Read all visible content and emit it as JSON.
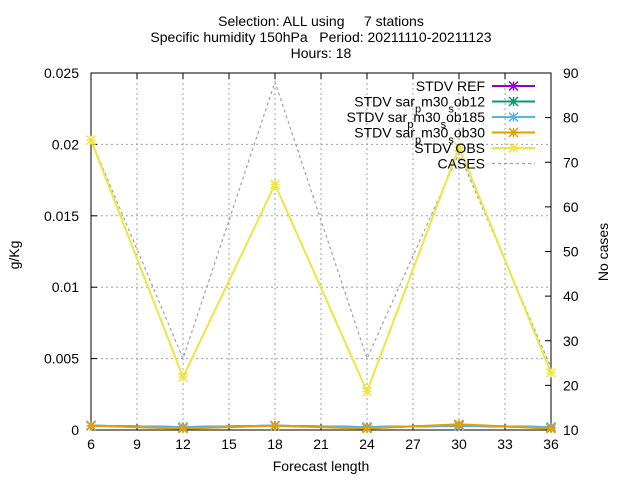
{
  "chart_data": {
    "type": "line",
    "title_lines": [
      "Selection: ALL using     7 stations",
      "Specific humidity 150hPa   Period: 20211110-20211123",
      "Hours: 18"
    ],
    "xlabel": "Forecast length",
    "ylabel": "g/Kg",
    "y2label": "No cases",
    "x": [
      6,
      12,
      18,
      24,
      30,
      36
    ],
    "xticks": [
      6,
      9,
      12,
      15,
      18,
      21,
      24,
      27,
      30,
      33,
      36
    ],
    "xlim": [
      6,
      36
    ],
    "ylim": [
      0,
      0.025
    ],
    "yticks": [
      0,
      0.005,
      0.01,
      0.015,
      0.02,
      0.025
    ],
    "ytick_labels": [
      "0",
      "0.005",
      "0.01",
      "0.015",
      "0.02",
      "0.025"
    ],
    "y2lim": [
      10,
      90
    ],
    "y2ticks": [
      10,
      20,
      30,
      40,
      50,
      60,
      70,
      80,
      90
    ],
    "grid": true,
    "legend_position": "top-right",
    "series": [
      {
        "name": "STDV REF",
        "color": "#9400d3",
        "axis": "y",
        "marker": "x",
        "values": [
          0.0003,
          0.0002,
          0.0003,
          0.0002,
          0.0003,
          0.0002
        ]
      },
      {
        "name": "STDV sar_pm30_sob12",
        "color": "#009e73",
        "axis": "y",
        "marker": "x",
        "values": [
          0.0003,
          0.0002,
          0.0003,
          0.0002,
          0.0003,
          0.0002
        ]
      },
      {
        "name": "STDV sar_pm30_sob185",
        "color": "#56b4e9",
        "axis": "y",
        "marker": "x",
        "values": [
          0.0003,
          0.0002,
          0.0003,
          0.0002,
          0.0003,
          0.0002
        ]
      },
      {
        "name": "STDV sar_pm30_sob30",
        "color": "#e69f00",
        "axis": "y",
        "marker": "x",
        "values": [
          0.0003,
          0.0001,
          0.0003,
          0.0001,
          0.0004,
          0.0001
        ]
      },
      {
        "name": "STDV OBS",
        "color": "#f0e442",
        "axis": "y",
        "marker": "x",
        "values": [
          0.0203,
          0.0037,
          0.0172,
          0.0027,
          0.0198,
          0.004
        ]
      },
      {
        "name": "CASES",
        "color": "#a0a0a0",
        "axis": "y2",
        "marker": "none",
        "dashed": true,
        "values": [
          75,
          26,
          88,
          26,
          72,
          24
        ]
      }
    ]
  }
}
